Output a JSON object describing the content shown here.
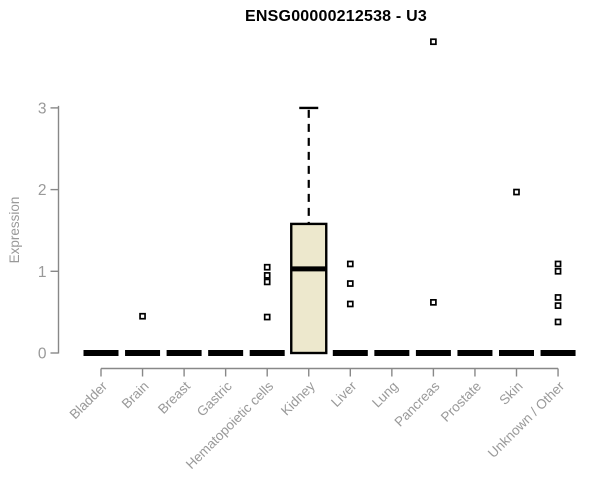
{
  "chart_data": {
    "type": "boxplot",
    "title": "ENSG00000212538 - U3",
    "ylabel": "Expression",
    "xlabel": "",
    "ylim": [
      0,
      3
    ],
    "yticks": [
      0,
      1,
      2,
      3
    ],
    "grid": false,
    "legend": false,
    "categories": [
      "Bladder",
      "Brain",
      "Breast",
      "Gastric",
      "Hematopoietic cells",
      "Kidney",
      "Liver",
      "Lung",
      "Pancreas",
      "Prostate",
      "Skin",
      "Unknown / Other"
    ],
    "boxes": [
      {
        "category": "Bladder",
        "whisker_low": 0,
        "q1": 0,
        "median": 0,
        "q3": 0,
        "whisker_high": 0,
        "outliers": []
      },
      {
        "category": "Brain",
        "whisker_low": 0,
        "q1": 0,
        "median": 0,
        "q3": 0,
        "whisker_high": 0,
        "outliers": [
          0.45
        ]
      },
      {
        "category": "Breast",
        "whisker_low": 0,
        "q1": 0,
        "median": 0,
        "q3": 0,
        "whisker_high": 0,
        "outliers": []
      },
      {
        "category": "Gastric",
        "whisker_low": 0,
        "q1": 0,
        "median": 0,
        "q3": 0,
        "whisker_high": 0,
        "outliers": []
      },
      {
        "category": "Hematopoietic cells",
        "whisker_low": 0,
        "q1": 0,
        "median": 0,
        "q3": 0,
        "whisker_high": 0,
        "outliers": [
          1.05,
          0.95,
          0.87,
          0.44
        ]
      },
      {
        "category": "Kidney",
        "whisker_low": 0,
        "q1": 0,
        "median": 1.03,
        "q3": 1.58,
        "whisker_high": 3.0,
        "outliers": []
      },
      {
        "category": "Liver",
        "whisker_low": 0,
        "q1": 0,
        "median": 0,
        "q3": 0,
        "whisker_high": 0,
        "outliers": [
          1.09,
          0.85,
          0.6
        ]
      },
      {
        "category": "Lung",
        "whisker_low": 0,
        "q1": 0,
        "median": 0,
        "q3": 0,
        "whisker_high": 0,
        "outliers": []
      },
      {
        "category": "Pancreas",
        "whisker_low": 0,
        "q1": 0,
        "median": 0,
        "q3": 0,
        "whisker_high": 0,
        "outliers": [
          3.81,
          0.62
        ]
      },
      {
        "category": "Prostate",
        "whisker_low": 0,
        "q1": 0,
        "median": 0,
        "q3": 0,
        "whisker_high": 0,
        "outliers": []
      },
      {
        "category": "Skin",
        "whisker_low": 0,
        "q1": 0,
        "median": 0,
        "q3": 0,
        "whisker_high": 0,
        "outliers": [
          1.97
        ]
      },
      {
        "category": "Unknown / Other",
        "whisker_low": 0,
        "q1": 0,
        "median": 0,
        "q3": 0,
        "whisker_high": 0,
        "outliers": [
          1.09,
          1.0,
          0.68,
          0.58,
          0.38
        ]
      }
    ],
    "colors": {
      "box_fill": "#EDE8CD",
      "box_stroke": "#000000",
      "median": "#000000",
      "outlier_stroke": "#000000",
      "outlier_fill": "#ffffff",
      "axis": "#888888",
      "tick_label": "#999999",
      "title": "#000000",
      "background": "#ffffff"
    }
  }
}
